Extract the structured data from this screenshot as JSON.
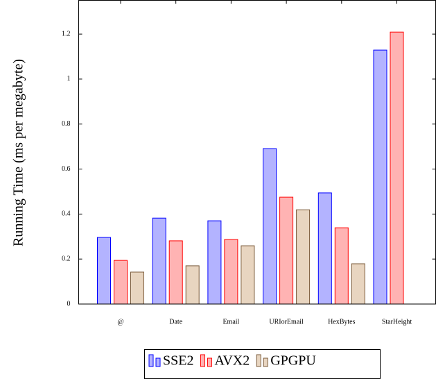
{
  "chart_data": {
    "type": "bar",
    "y_label": "Running Time (ms per megabyte)",
    "categories": [
      "@",
      "Date",
      "Email",
      "URIorEmail",
      "HexBytes",
      "StarHeight"
    ],
    "series": [
      {
        "name": "SSE2",
        "color": "#b3b3ff",
        "edgecolor": "#0000ff",
        "values": [
          0.296,
          0.382,
          0.37,
          0.691,
          0.494,
          1.129
        ]
      },
      {
        "name": "AVX2",
        "color": "#ffb3b3",
        "edgecolor": "#ff0000",
        "values": [
          0.194,
          0.281,
          0.287,
          0.475,
          0.339,
          1.209
        ]
      },
      {
        "name": "GPGPU",
        "color": "#e8d5c0",
        "edgecolor": "#7a5a3a",
        "values": [
          0.142,
          0.17,
          0.259,
          0.419,
          0.179,
          null
        ]
      }
    ],
    "ylim": [
      0,
      1.35
    ],
    "yticks": [
      0,
      0.2,
      0.4,
      0.6,
      0.8,
      1,
      1.2
    ],
    "legend": "bottom"
  }
}
